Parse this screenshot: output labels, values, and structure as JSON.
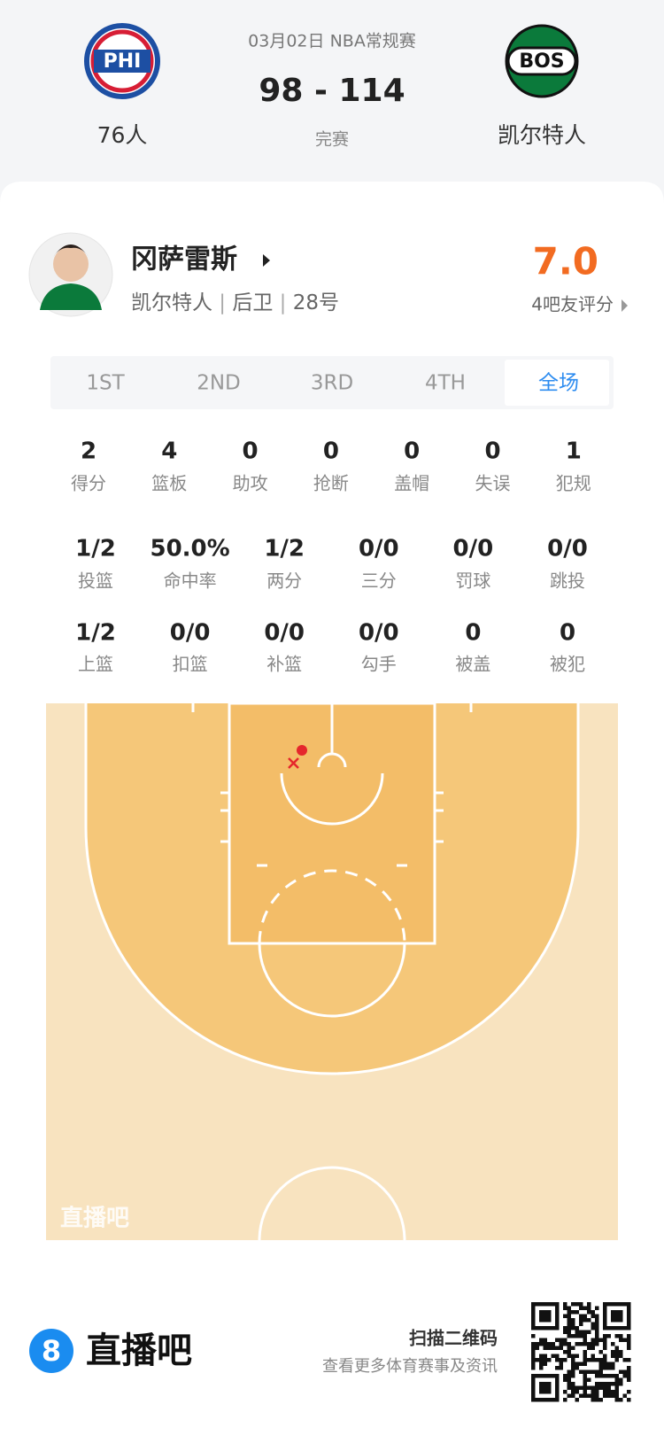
{
  "header": {
    "date": "03月02日 NBA常规赛",
    "score": "98 - 114",
    "status": "完赛",
    "home": {
      "logo": "PHI",
      "name": "76人"
    },
    "away": {
      "logo": "BOS",
      "name": "凯尔特人"
    }
  },
  "player": {
    "name": "冈萨雷斯",
    "team": "凯尔特人",
    "position": "后卫",
    "number": "28号",
    "rating": "7.0",
    "rating_label": "4吧友评分"
  },
  "tabs": [
    "1ST",
    "2ND",
    "3RD",
    "4TH",
    "全场"
  ],
  "stats": [
    [
      {
        "value": "2",
        "label": "得分"
      },
      {
        "value": "4",
        "label": "篮板"
      },
      {
        "value": "0",
        "label": "助攻"
      },
      {
        "value": "0",
        "label": "抢断"
      },
      {
        "value": "0",
        "label": "盖帽"
      },
      {
        "value": "0",
        "label": "失误"
      },
      {
        "value": "1",
        "label": "犯规"
      }
    ],
    [
      {
        "value": "1/2",
        "label": "投篮"
      },
      {
        "value": "50.0%",
        "label": "命中率"
      },
      {
        "value": "1/2",
        "label": "两分"
      },
      {
        "value": "0/0",
        "label": "三分"
      },
      {
        "value": "0/0",
        "label": "罚球"
      },
      {
        "value": "0/0",
        "label": "跳投"
      }
    ],
    [
      {
        "value": "1/2",
        "label": "上篮"
      },
      {
        "value": "0/0",
        "label": "扣篮"
      },
      {
        "value": "0/0",
        "label": "补篮"
      },
      {
        "value": "0/0",
        "label": "勾手"
      },
      {
        "value": "0",
        "label": "被盖"
      },
      {
        "value": "0",
        "label": "被犯"
      }
    ]
  ],
  "court": {
    "watermark": "直播吧"
  },
  "footer": {
    "brand": "直播吧",
    "scan": "扫描二维码",
    "more": "查看更多体育赛事及资讯"
  }
}
